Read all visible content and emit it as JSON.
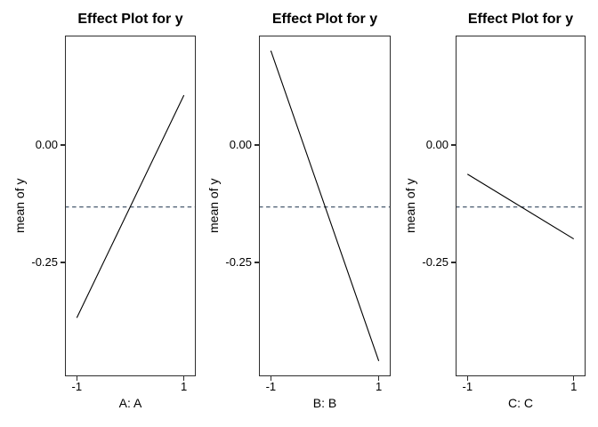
{
  "canvas": {
    "background": "#ffffff"
  },
  "chart_data": [
    {
      "type": "line",
      "title": "Effect Plot for y",
      "ylabel": "mean of y",
      "xlabel": "A: A",
      "x": [
        -1,
        1
      ],
      "y": [
        -0.368,
        0.106
      ],
      "mean_y": -0.132,
      "xticks": [
        -1,
        1
      ],
      "xtick_labels": [
        "-1",
        "1"
      ],
      "yticks": [
        0,
        -0.25
      ],
      "ytick_labels": [
        "0.00",
        "-0.25"
      ],
      "xlim": [
        -1.105,
        1.105
      ],
      "ylim": [
        -0.4925,
        0.233
      ],
      "grid": false,
      "line_color": "#000000",
      "mean_line_color": "#33475e",
      "mean_line_style": "dashed"
    },
    {
      "type": "line",
      "title": "Effect Plot for y",
      "ylabel": "mean of y",
      "xlabel": "B: B",
      "x": [
        -1,
        1
      ],
      "y": [
        0.201,
        -0.46
      ],
      "mean_y": -0.132,
      "xticks": [
        -1,
        1
      ],
      "xtick_labels": [
        "-1",
        "1"
      ],
      "yticks": [
        0,
        -0.25
      ],
      "ytick_labels": [
        "0.00",
        "-0.25"
      ],
      "xlim": [
        -1.105,
        1.105
      ],
      "ylim": [
        -0.4925,
        0.233
      ],
      "grid": false,
      "line_color": "#000000",
      "mean_line_color": "#33475e",
      "mean_line_style": "dashed"
    },
    {
      "type": "line",
      "title": "Effect Plot for y",
      "ylabel": "mean of y",
      "xlabel": "C: C",
      "x": [
        -1,
        1
      ],
      "y": [
        -0.062,
        -0.2
      ],
      "mean_y": -0.132,
      "xticks": [
        -1,
        1
      ],
      "xtick_labels": [
        "-1",
        "1"
      ],
      "yticks": [
        0,
        -0.25
      ],
      "ytick_labels": [
        "0.00",
        "-0.25"
      ],
      "xlim": [
        -1.105,
        1.105
      ],
      "ylim": [
        -0.4925,
        0.233
      ],
      "grid": false,
      "line_color": "#000000",
      "mean_line_color": "#33475e",
      "mean_line_style": "dashed"
    }
  ]
}
